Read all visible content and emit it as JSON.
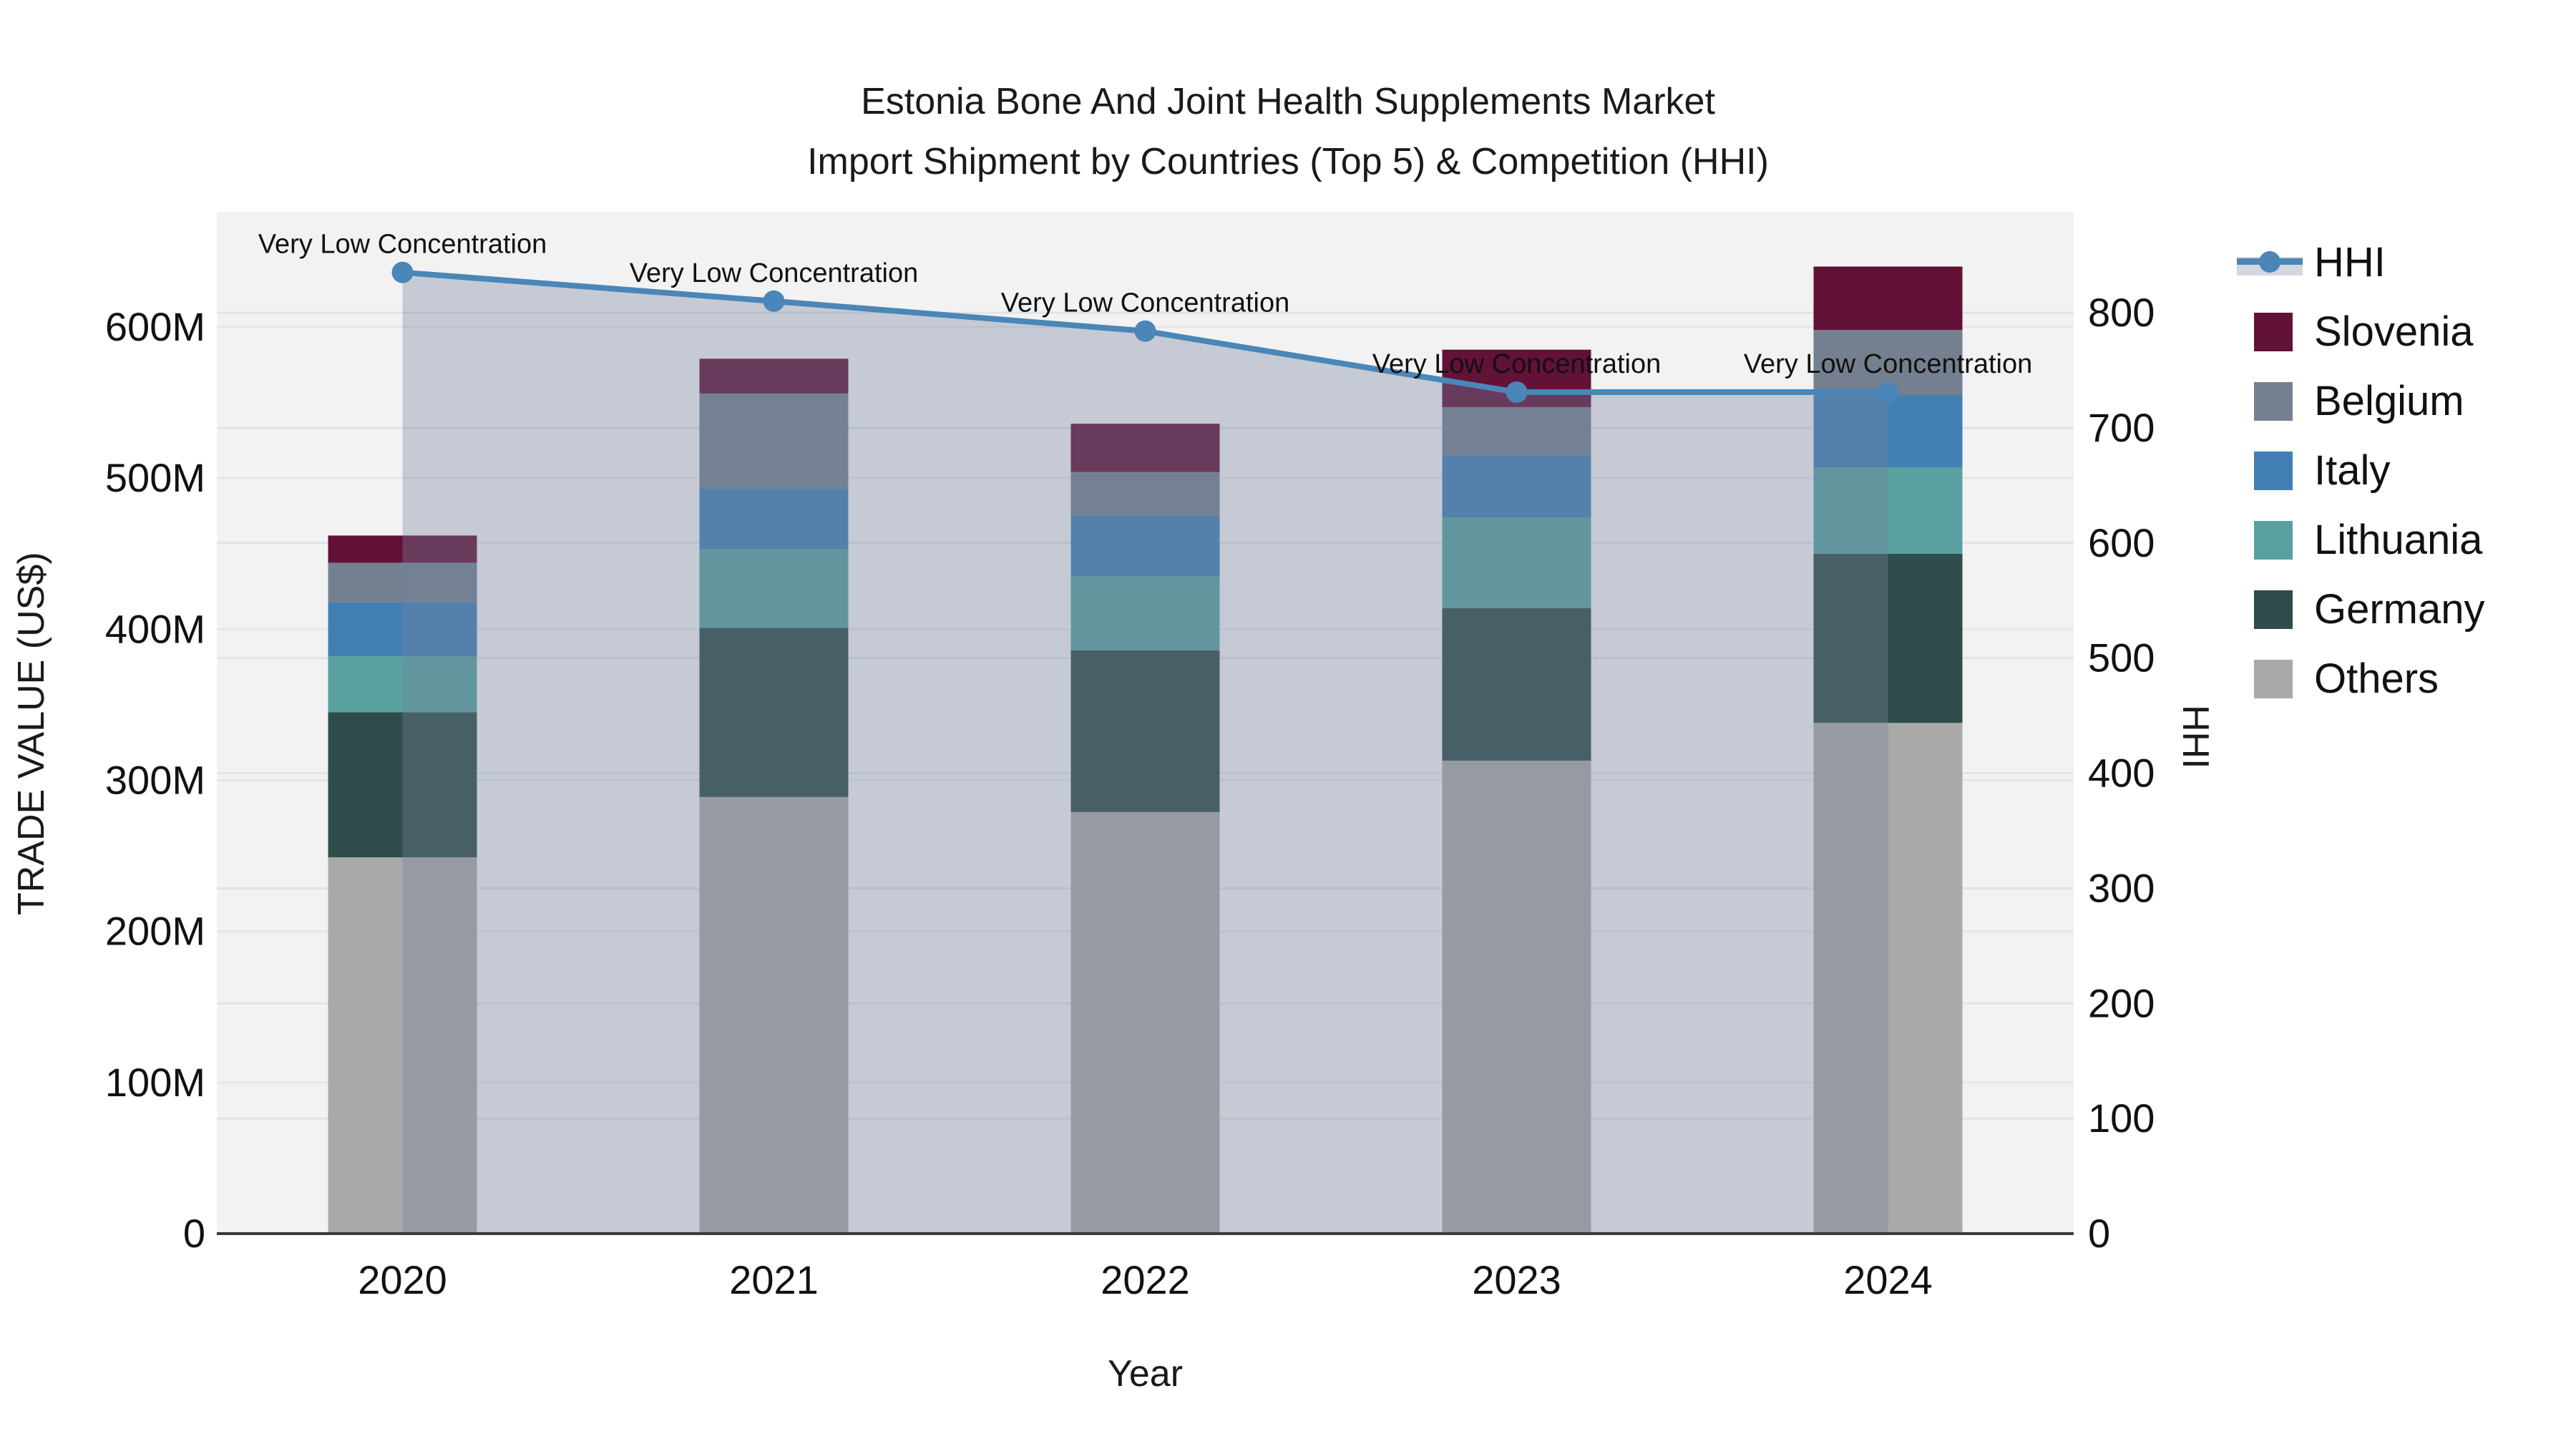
{
  "title": {
    "line1": "Estonia Bone And Joint Health Supplements Market",
    "line2": "Import Shipment by Countries (Top 5) & Competition (HHI)"
  },
  "axis_titles": {
    "x": "Year",
    "y_left": "TRADE VALUE (US$)",
    "y_right": "HHI"
  },
  "legend": {
    "items": [
      {
        "label": "HHI",
        "type": "line",
        "color": "#4a86b8"
      },
      {
        "label": "Slovenia",
        "type": "swatch",
        "color": "#621237"
      },
      {
        "label": "Belgium",
        "type": "swatch",
        "color": "#74808f"
      },
      {
        "label": "Italy",
        "type": "swatch",
        "color": "#4280b4"
      },
      {
        "label": "Lithuania",
        "type": "swatch",
        "color": "#58a1a0"
      },
      {
        "label": "Germany",
        "type": "swatch",
        "color": "#2e4d4a"
      },
      {
        "label": "Others",
        "type": "swatch",
        "color": "#a9a9a7"
      }
    ]
  },
  "chart_data": {
    "type": "bar+line",
    "title": "Estonia Bone And Joint Health Supplements Market — Import Shipment by Countries (Top 5) & Competition (HHI)",
    "categories": [
      "2020",
      "2021",
      "2022",
      "2023",
      "2024"
    ],
    "stack_order_bottom_to_top": [
      "Others",
      "Germany",
      "Lithuania",
      "Italy",
      "Belgium",
      "Slovenia"
    ],
    "series": [
      {
        "name": "Others",
        "color": "#a9a9a7",
        "values": [
          249,
          289,
          279,
          313,
          338
        ]
      },
      {
        "name": "Germany",
        "color": "#2e4d4a",
        "values": [
          96,
          112,
          107,
          101,
          112
        ]
      },
      {
        "name": "Lithuania",
        "color": "#58a1a0",
        "values": [
          37,
          52,
          49,
          60,
          57
        ]
      },
      {
        "name": "Italy",
        "color": "#4280b4",
        "values": [
          36,
          40,
          40,
          41,
          48
        ]
      },
      {
        "name": "Belgium",
        "color": "#74808f",
        "values": [
          26,
          63,
          29,
          32,
          43
        ]
      },
      {
        "name": "Slovenia",
        "color": "#621237",
        "values": [
          18,
          23,
          32,
          38,
          42
        ]
      }
    ],
    "bar_totals_musd": [
      462,
      579,
      536,
      585,
      640
    ],
    "line_series": {
      "name": "HHI",
      "color": "#4a86b8",
      "area_fill": "rgba(117,131,157,0.36)",
      "values": [
        835,
        810,
        784,
        731,
        731
      ]
    },
    "annotations": [
      {
        "x": "2020",
        "text": "Very Low Concentration"
      },
      {
        "x": "2021",
        "text": "Very Low Concentration"
      },
      {
        "x": "2022",
        "text": "Very Low Concentration"
      },
      {
        "x": "2023",
        "text": "Very Low Concentration"
      },
      {
        "x": "2024",
        "text": "Very Low Concentration"
      }
    ],
    "y_left": {
      "title": "TRADE VALUE (US$)",
      "tick_labels": [
        "0",
        "100M",
        "200M",
        "300M",
        "400M",
        "500M",
        "600M"
      ],
      "tick_values": [
        0,
        100,
        200,
        300,
        400,
        500,
        600
      ],
      "units": "million US$",
      "max": 676
    },
    "y_right": {
      "title": "HHI",
      "tick_labels": [
        "0",
        "100",
        "200",
        "300",
        "400",
        "500",
        "600",
        "700",
        "800"
      ],
      "tick_values": [
        0,
        100,
        200,
        300,
        400,
        500,
        600,
        700,
        800
      ],
      "max": 888
    },
    "x_title": "Year",
    "grid": true,
    "legend_position": "right",
    "plot_background": "#f2f2f2"
  }
}
